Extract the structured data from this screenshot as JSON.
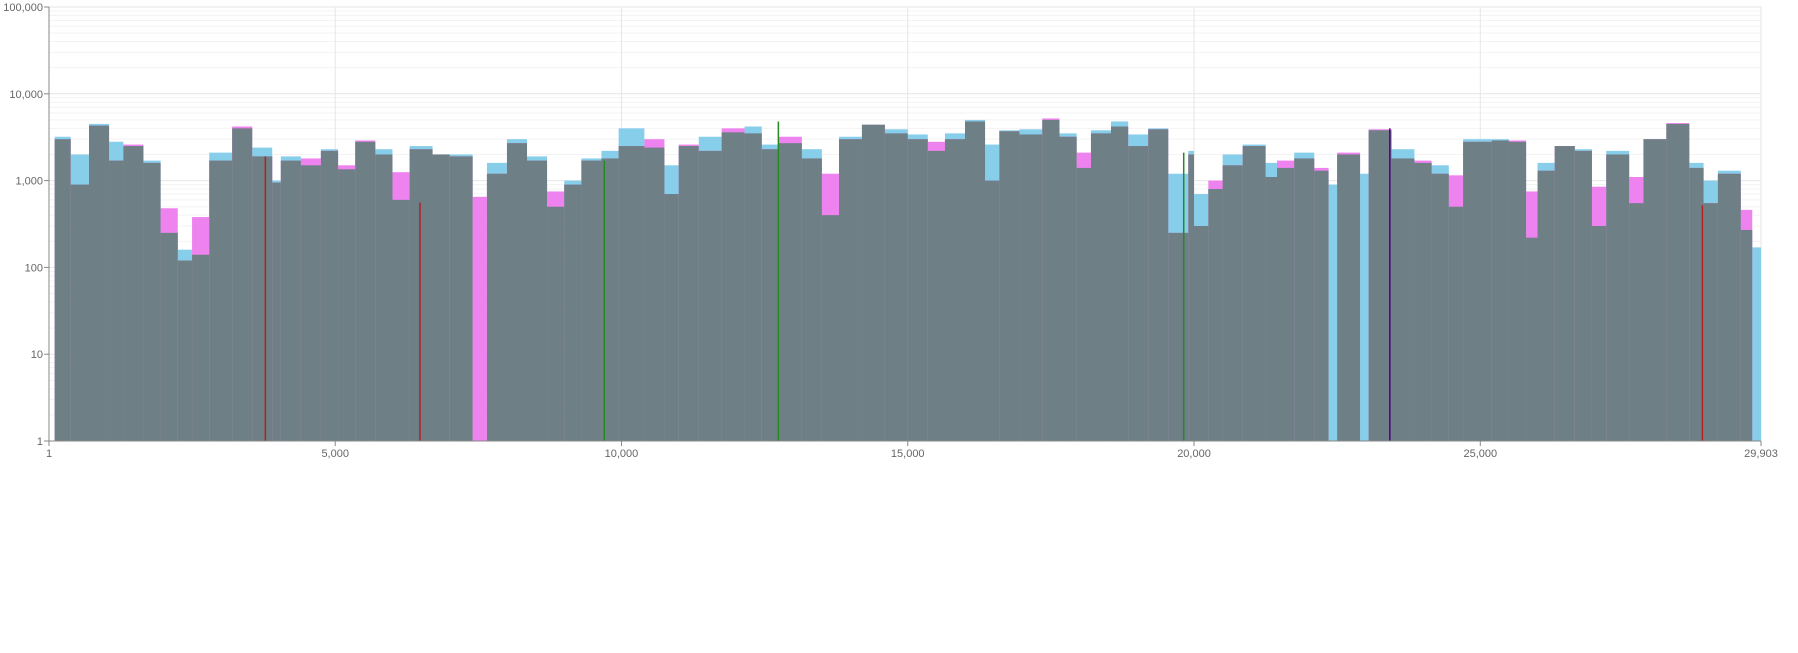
{
  "chart_data": {
    "type": "area",
    "x_scale": "linear",
    "y_scale": "log",
    "xlim": [
      1,
      29903
    ],
    "ylim": [
      1,
      100000
    ],
    "grid": true,
    "x_tick_values": [
      1,
      5000,
      10000,
      15000,
      20000,
      25000,
      29903
    ],
    "x_tick_labels": [
      "1",
      "5,000",
      "10,000",
      "15,000",
      "20,000",
      "25,000",
      "29,903"
    ],
    "y_tick_values": [
      1,
      10,
      100,
      1000,
      10000,
      100000
    ],
    "y_tick_labels": [
      "1",
      "10",
      "100",
      "1,000",
      "10,000",
      "100,000"
    ],
    "series": [
      {
        "color": "#87ceeb",
        "segments": [
          [
            100,
            380,
            3200
          ],
          [
            380,
            700,
            2000
          ],
          [
            700,
            1050,
            4500
          ],
          [
            1050,
            1300,
            2800
          ],
          [
            1300,
            1650,
            2500
          ],
          [
            1650,
            1950,
            1700
          ],
          [
            1950,
            2250,
            250
          ],
          [
            2250,
            2500,
            160
          ],
          [
            2500,
            2800,
            140
          ],
          [
            2800,
            3200,
            2100
          ],
          [
            3200,
            3550,
            4000
          ],
          [
            3550,
            3900,
            2400
          ],
          [
            3900,
            4050,
            1000
          ],
          [
            4050,
            4400,
            1900
          ],
          [
            4400,
            4750,
            1500
          ],
          [
            4750,
            5050,
            2300
          ],
          [
            5050,
            5350,
            1350
          ],
          [
            5350,
            5700,
            2800
          ],
          [
            5700,
            6000,
            2300
          ],
          [
            6000,
            6300,
            600
          ],
          [
            6300,
            6700,
            2500
          ],
          [
            6700,
            7000,
            2000
          ],
          [
            7000,
            7400,
            2000
          ],
          [
            7400,
            7650,
            1
          ],
          [
            7650,
            8000,
            1600
          ],
          [
            8000,
            8350,
            3000
          ],
          [
            8350,
            8700,
            1900
          ],
          [
            8700,
            9000,
            500
          ],
          [
            9000,
            9300,
            1000
          ],
          [
            9300,
            9650,
            1800
          ],
          [
            9650,
            9950,
            2200
          ],
          [
            9950,
            10400,
            4000
          ],
          [
            10400,
            10750,
            2400
          ],
          [
            10750,
            11000,
            1500
          ],
          [
            11000,
            11350,
            2500
          ],
          [
            11350,
            11750,
            3200
          ],
          [
            11750,
            12150,
            3600
          ],
          [
            12150,
            12450,
            4200
          ],
          [
            12450,
            12750,
            2600
          ],
          [
            12750,
            13150,
            2700
          ],
          [
            13150,
            13500,
            2300
          ],
          [
            13500,
            13800,
            400
          ],
          [
            13800,
            14200,
            3200
          ],
          [
            14200,
            14600,
            4400
          ],
          [
            14600,
            15000,
            3900
          ],
          [
            15000,
            15350,
            3400
          ],
          [
            15350,
            15650,
            2200
          ],
          [
            15650,
            16000,
            3500
          ],
          [
            16000,
            16350,
            5000
          ],
          [
            16350,
            16600,
            2600
          ],
          [
            16600,
            16950,
            3800
          ],
          [
            16950,
            17350,
            3900
          ],
          [
            17350,
            17650,
            5000
          ],
          [
            17650,
            17950,
            3500
          ],
          [
            17950,
            18200,
            1400
          ],
          [
            18200,
            18550,
            3800
          ],
          [
            18550,
            18850,
            4800
          ],
          [
            18850,
            19200,
            3400
          ],
          [
            19200,
            19550,
            4000
          ],
          [
            19550,
            19900,
            1200
          ],
          [
            19900,
            20000,
            2200
          ],
          [
            20000,
            20250,
            700
          ],
          [
            20250,
            20500,
            800
          ],
          [
            20500,
            20850,
            2000
          ],
          [
            20850,
            21250,
            2600
          ],
          [
            21250,
            21450,
            1600
          ],
          [
            21450,
            21750,
            1400
          ],
          [
            21750,
            22100,
            2100
          ],
          [
            22100,
            22350,
            1300
          ],
          [
            22350,
            22500,
            900
          ],
          [
            22500,
            22900,
            2000
          ],
          [
            22900,
            23050,
            1200
          ],
          [
            23050,
            23450,
            3800
          ],
          [
            23450,
            23850,
            2300
          ],
          [
            23850,
            24150,
            1600
          ],
          [
            24150,
            24450,
            1500
          ],
          [
            24450,
            24700,
            500
          ],
          [
            24700,
            25200,
            3000
          ],
          [
            25200,
            25500,
            3000
          ],
          [
            25500,
            25800,
            2800
          ],
          [
            25800,
            26000,
            220
          ],
          [
            26000,
            26300,
            1600
          ],
          [
            26300,
            26650,
            2500
          ],
          [
            26650,
            26950,
            2300
          ],
          [
            26950,
            27200,
            300
          ],
          [
            27200,
            27600,
            2200
          ],
          [
            27600,
            27850,
            550
          ],
          [
            27850,
            28250,
            3000
          ],
          [
            28250,
            28650,
            4500
          ],
          [
            28650,
            28900,
            1600
          ],
          [
            28900,
            29150,
            1000
          ],
          [
            29150,
            29550,
            1300
          ],
          [
            29550,
            29750,
            270
          ],
          [
            29750,
            29903,
            170
          ]
        ]
      },
      {
        "color": "#ee82ee",
        "segments": [
          [
            100,
            380,
            3000
          ],
          [
            380,
            700,
            900
          ],
          [
            700,
            1050,
            4300
          ],
          [
            1050,
            1300,
            1700
          ],
          [
            1300,
            1650,
            2600
          ],
          [
            1650,
            1950,
            1600
          ],
          [
            1950,
            2250,
            480
          ],
          [
            2250,
            2500,
            120
          ],
          [
            2500,
            2800,
            380
          ],
          [
            2800,
            3200,
            1700
          ],
          [
            3200,
            3550,
            4200
          ],
          [
            3550,
            3900,
            1900
          ],
          [
            3900,
            4050,
            950
          ],
          [
            4050,
            4400,
            1700
          ],
          [
            4400,
            4750,
            1800
          ],
          [
            4750,
            5050,
            2200
          ],
          [
            5050,
            5350,
            1500
          ],
          [
            5350,
            5700,
            2900
          ],
          [
            5700,
            6000,
            2000
          ],
          [
            6000,
            6300,
            1250
          ],
          [
            6300,
            6700,
            2300
          ],
          [
            6700,
            7000,
            2000
          ],
          [
            7000,
            7400,
            1900
          ],
          [
            7400,
            7650,
            650
          ],
          [
            7650,
            8000,
            1200
          ],
          [
            8000,
            8350,
            2700
          ],
          [
            8350,
            8700,
            1700
          ],
          [
            8700,
            9000,
            750
          ],
          [
            9000,
            9300,
            900
          ],
          [
            9300,
            9650,
            1700
          ],
          [
            9650,
            9950,
            1800
          ],
          [
            9950,
            10400,
            2500
          ],
          [
            10400,
            10750,
            3000
          ],
          [
            10750,
            11000,
            700
          ],
          [
            11000,
            11350,
            2600
          ],
          [
            11350,
            11750,
            2200
          ],
          [
            11750,
            12150,
            4000
          ],
          [
            12150,
            12450,
            3500
          ],
          [
            12450,
            12750,
            2300
          ],
          [
            12750,
            13150,
            3200
          ],
          [
            13150,
            13500,
            1800
          ],
          [
            13500,
            13800,
            1200
          ],
          [
            13800,
            14200,
            3000
          ],
          [
            14200,
            14600,
            4400
          ],
          [
            14600,
            15000,
            3500
          ],
          [
            15000,
            15350,
            3000
          ],
          [
            15350,
            15650,
            2800
          ],
          [
            15650,
            16000,
            3000
          ],
          [
            16000,
            16350,
            4800
          ],
          [
            16350,
            16600,
            1000
          ],
          [
            16600,
            16950,
            3700
          ],
          [
            16950,
            17350,
            3400
          ],
          [
            17350,
            17650,
            5200
          ],
          [
            17650,
            17950,
            3200
          ],
          [
            17950,
            18200,
            2100
          ],
          [
            18200,
            18550,
            3500
          ],
          [
            18550,
            18850,
            4200
          ],
          [
            18850,
            19200,
            2500
          ],
          [
            19200,
            19550,
            3900
          ],
          [
            19550,
            19900,
            250
          ],
          [
            19900,
            20000,
            2000
          ],
          [
            20000,
            20250,
            300
          ],
          [
            20250,
            20500,
            1000
          ],
          [
            20500,
            20850,
            1500
          ],
          [
            20850,
            21250,
            2500
          ],
          [
            21250,
            21450,
            1100
          ],
          [
            21450,
            21750,
            1700
          ],
          [
            21750,
            22100,
            1800
          ],
          [
            22100,
            22350,
            1400
          ],
          [
            22350,
            22500,
            1
          ],
          [
            22500,
            22900,
            2100
          ],
          [
            22900,
            23050,
            1
          ],
          [
            23050,
            23450,
            3900
          ],
          [
            23450,
            23850,
            1800
          ],
          [
            23850,
            24150,
            1700
          ],
          [
            24150,
            24450,
            1200
          ],
          [
            24450,
            24700,
            1150
          ],
          [
            24700,
            25200,
            2800
          ],
          [
            25200,
            25500,
            2900
          ],
          [
            25500,
            25800,
            2900
          ],
          [
            25800,
            26000,
            750
          ],
          [
            26000,
            26300,
            1300
          ],
          [
            26300,
            26650,
            2500
          ],
          [
            26650,
            26950,
            2200
          ],
          [
            26950,
            27200,
            850
          ],
          [
            27200,
            27600,
            2000
          ],
          [
            27600,
            27850,
            1100
          ],
          [
            27850,
            28250,
            3000
          ],
          [
            28250,
            28650,
            4600
          ],
          [
            28650,
            28900,
            1400
          ],
          [
            28900,
            29150,
            550
          ],
          [
            29150,
            29550,
            1200
          ],
          [
            29550,
            29750,
            460
          ],
          [
            29750,
            29903,
            1
          ]
        ]
      }
    ],
    "markers": [
      {
        "x": 3780,
        "y": 1900,
        "color": "#b22222"
      },
      {
        "x": 6480,
        "y": 560,
        "color": "#b22222"
      },
      {
        "x": 9700,
        "y": 1700,
        "color": "#228b22"
      },
      {
        "x": 12740,
        "y": 4800,
        "color": "#228b22"
      },
      {
        "x": 19820,
        "y": 2100,
        "color": "#228b22"
      },
      {
        "x": 23420,
        "y": 4000,
        "color": "#4b0082"
      },
      {
        "x": 28880,
        "y": 520,
        "color": "#b22222"
      }
    ]
  }
}
